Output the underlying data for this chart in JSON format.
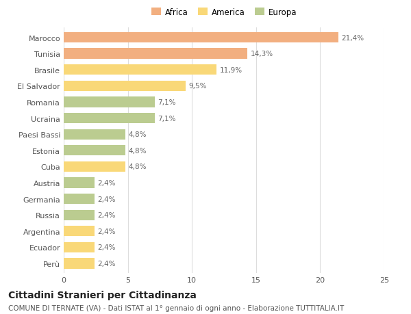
{
  "categories": [
    "Marocco",
    "Tunisia",
    "Brasile",
    "El Salvador",
    "Romania",
    "Ucraina",
    "Paesi Bassi",
    "Estonia",
    "Cuba",
    "Austria",
    "Germania",
    "Russia",
    "Argentina",
    "Ecuador",
    "Perù"
  ],
  "values": [
    21.4,
    14.3,
    11.9,
    9.5,
    7.1,
    7.1,
    4.8,
    4.8,
    4.8,
    2.4,
    2.4,
    2.4,
    2.4,
    2.4,
    2.4
  ],
  "labels": [
    "21,4%",
    "14,3%",
    "11,9%",
    "9,5%",
    "7,1%",
    "7,1%",
    "4,8%",
    "4,8%",
    "4,8%",
    "2,4%",
    "2,4%",
    "2,4%",
    "2,4%",
    "2,4%",
    "2,4%"
  ],
  "continent": [
    "Africa",
    "Africa",
    "America",
    "America",
    "Europa",
    "Europa",
    "Europa",
    "Europa",
    "America",
    "Europa",
    "Europa",
    "Europa",
    "America",
    "America",
    "America"
  ],
  "colors": {
    "Africa": "#F2AF80",
    "America": "#F9D878",
    "Europa": "#BBCC90"
  },
  "legend_labels": [
    "Africa",
    "America",
    "Europa"
  ],
  "legend_colors": [
    "#F2AF80",
    "#F9D878",
    "#BBCC90"
  ],
  "title": "Cittadini Stranieri per Cittadinanza",
  "subtitle": "COMUNE DI TERNATE (VA) - Dati ISTAT al 1° gennaio di ogni anno - Elaborazione TUTTITALIA.IT",
  "xlim": [
    0,
    25
  ],
  "xticks": [
    0,
    5,
    10,
    15,
    20,
    25
  ],
  "background_color": "#FFFFFF",
  "grid_color": "#DDDDDD",
  "bar_height": 0.65,
  "label_fontsize": 7.5,
  "title_fontsize": 10,
  "subtitle_fontsize": 7.5,
  "tick_fontsize": 8,
  "legend_fontsize": 8.5
}
